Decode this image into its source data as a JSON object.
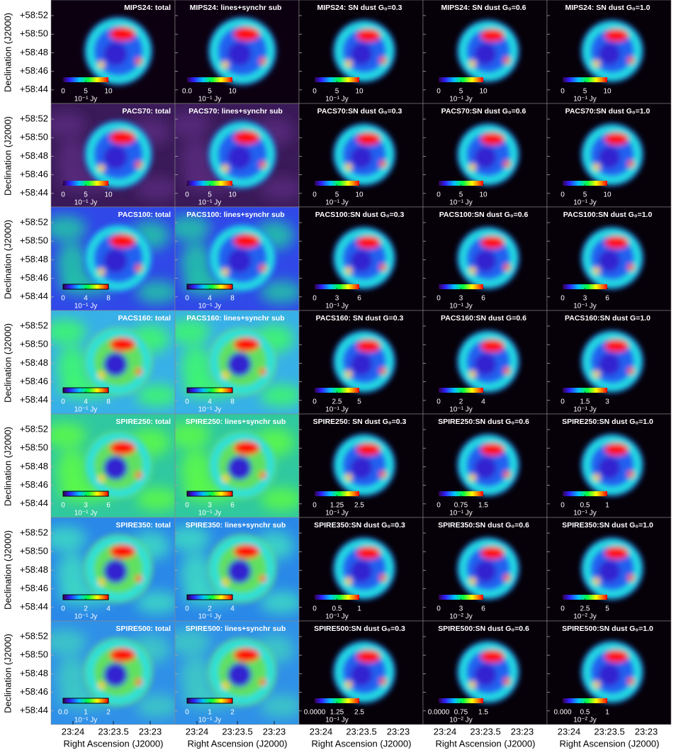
{
  "axes": {
    "y_label": "Declination (J2000)",
    "y_ticks": [
      "+58:52",
      "+58:50",
      "+58:48",
      "+58:46",
      "+58:44"
    ],
    "x_label": "Right Ascension (J2000)",
    "x_ticks": [
      "23:24",
      "23:23.5",
      "23:23"
    ]
  },
  "panels": [
    [
      {
        "title": "MIPS24: total",
        "cbar_ticks": [
          0,
          5,
          10
        ],
        "clim": [
          0,
          10
        ],
        "unit": "10⁻¹ Jy"
      },
      {
        "title": "MIPS24: lines+synchr sub",
        "cbar_ticks": [
          {
            "value": 0,
            "label": "0.0"
          },
          5,
          10
        ],
        "clim": [
          0,
          10
        ],
        "unit": "10⁻¹ Jy"
      },
      {
        "title": "MIPS24: SN dust G₀=0.3",
        "cbar_ticks": [
          0,
          5,
          10
        ],
        "clim": [
          0,
          10
        ],
        "unit": "10⁻¹ Jy"
      },
      {
        "title": "MIPS24: SN dust G₀=0.6",
        "cbar_ticks": [
          0,
          5,
          10
        ],
        "clim": [
          0,
          10
        ],
        "unit": "10⁻¹ Jy"
      },
      {
        "title": "MIPS24: SN dust G₀=1.0",
        "cbar_ticks": [
          0,
          5,
          10
        ],
        "clim": [
          0,
          10
        ],
        "unit": "10⁻¹ Jy"
      }
    ],
    [
      {
        "title": "PACS70: total",
        "cbar_ticks": [
          0,
          5,
          10
        ],
        "clim": [
          0,
          10
        ],
        "unit": "10⁻¹ Jy"
      },
      {
        "title": "PACS70: lines+synchr sub",
        "cbar_ticks": [
          0,
          5,
          10
        ],
        "clim": [
          0,
          10
        ],
        "unit": "10⁻¹ Jy"
      },
      {
        "title": "PACS70:SN dust G₀=0.3",
        "cbar_ticks": [
          0,
          5,
          10
        ],
        "clim": [
          0,
          10
        ],
        "unit": "10⁻¹ Jy"
      },
      {
        "title": "PACS70:SN dust G₀=0.6",
        "cbar_ticks": [
          0,
          5,
          10
        ],
        "clim": [
          0,
          10
        ],
        "unit": "10⁻¹ Jy"
      },
      {
        "title": "PACS70:SN dust G₀=1.0",
        "cbar_ticks": [
          0,
          5,
          10
        ],
        "clim": [
          0,
          10
        ],
        "unit": "10⁻¹ Jy"
      }
    ],
    [
      {
        "title": "PACS100: total",
        "cbar_ticks": [
          0,
          4,
          8
        ],
        "clim": [
          0,
          8
        ],
        "unit": "10⁻¹ Jy"
      },
      {
        "title": "PACS100: lines+synchr sub",
        "cbar_ticks": [
          0,
          4,
          8
        ],
        "clim": [
          0,
          8
        ],
        "unit": "10⁻¹ Jy"
      },
      {
        "title": "PACS100:SN dust G₀=0.3",
        "cbar_ticks": [
          0,
          3,
          6
        ],
        "clim": [
          0,
          6
        ],
        "unit": "10⁻¹ Jy"
      },
      {
        "title": "PACS100:SN dust G₀=0.6",
        "cbar_ticks": [
          0,
          3,
          6
        ],
        "clim": [
          0,
          6
        ],
        "unit": "10⁻¹ Jy"
      },
      {
        "title": "PACS100:SN dust G₀=1.0",
        "cbar_ticks": [
          0,
          3,
          6
        ],
        "clim": [
          0,
          6
        ],
        "unit": "10⁻¹ Jy"
      }
    ],
    [
      {
        "title": "PACS160: total",
        "cbar_ticks": [
          0,
          4,
          8
        ],
        "clim": [
          0,
          8
        ],
        "unit": "10⁻¹ Jy"
      },
      {
        "title": "PACS160: lines+synchr sub",
        "cbar_ticks": [
          0,
          4,
          8
        ],
        "clim": [
          0,
          8
        ],
        "unit": "10⁻¹ Jy"
      },
      {
        "title": "PACS160: SN dust G=0.3",
        "cbar_ticks": [
          0,
          2.5,
          5
        ],
        "clim": [
          0,
          5
        ],
        "unit": "10⁻¹ Jy"
      },
      {
        "title": "PACS160:SN dust G=0.6",
        "cbar_ticks": [
          0,
          2,
          4
        ],
        "clim": [
          0,
          4
        ],
        "unit": "10⁻¹ Jy"
      },
      {
        "title": "PACS160:SN dust G=1.0",
        "cbar_ticks": [
          0,
          1.5,
          3
        ],
        "clim": [
          0,
          3
        ],
        "unit": "10⁻¹ Jy"
      }
    ],
    [
      {
        "title": "SPIRE250: total",
        "cbar_ticks": [
          0,
          3,
          6
        ],
        "clim": [
          0,
          6
        ],
        "unit": "10⁻¹ Jy"
      },
      {
        "title": "SPIRE250: lines+synchr sub",
        "cbar_ticks": [
          0,
          3,
          6
        ],
        "clim": [
          0,
          6
        ],
        "unit": "10⁻¹ Jy"
      },
      {
        "title": "SPIRE250: SN dust G₀=0.3",
        "cbar_ticks": [
          0,
          1.25,
          2.5
        ],
        "clim": [
          0,
          2.5
        ],
        "unit": "10⁻¹ Jy"
      },
      {
        "title": "SPIRE250:SN dust G₀=0.6",
        "cbar_ticks": [
          0,
          0.75,
          1.5
        ],
        "clim": [
          0,
          1.5
        ],
        "unit": "10⁻¹ Jy"
      },
      {
        "title": "SPIRE250:SN dust G₀=1.0",
        "cbar_ticks": [
          0,
          0.5,
          1
        ],
        "clim": [
          0,
          1
        ],
        "unit": "10⁻¹ Jy"
      }
    ],
    [
      {
        "title": "SPIRE350: total",
        "cbar_ticks": [
          0,
          2,
          4
        ],
        "clim": [
          0,
          4
        ],
        "unit": "10⁻¹ Jy"
      },
      {
        "title": "SPIRE350: lines+synchr sub",
        "cbar_ticks": [
          0,
          2,
          4
        ],
        "clim": [
          0,
          4
        ],
        "unit": "10⁻¹ Jy"
      },
      {
        "title": "SPIRE350:SN dust G₀=0.3",
        "cbar_ticks": [
          0,
          0.5,
          1
        ],
        "clim": [
          0,
          1
        ],
        "unit": "10⁻¹ Jy"
      },
      {
        "title": "SPIRE350:SN dust G₀=0.6",
        "cbar_ticks": [
          0,
          3,
          6
        ],
        "clim": [
          0,
          6
        ],
        "unit": "10⁻² Jy"
      },
      {
        "title": "SPIRE350:SN dust G₀=1.0",
        "cbar_ticks": [
          0,
          2.5,
          5
        ],
        "clim": [
          0,
          5
        ],
        "unit": "10⁻² Jy"
      }
    ],
    [
      {
        "title": "SPIRE500: total",
        "cbar_ticks": [
          {
            "value": 0,
            "label": "0.0"
          },
          1,
          2
        ],
        "clim": [
          0,
          2
        ],
        "unit": "10⁻¹ Jy"
      },
      {
        "title": "SPIRE500: lines+synchr sub",
        "cbar_ticks": [
          0,
          1,
          2
        ],
        "clim": [
          0,
          2
        ],
        "unit": "10⁻¹ Jy"
      },
      {
        "title": "SPIRE500:SN dust G₀=0.3",
        "cbar_ticks": [
          {
            "value": 0,
            "label": "0.0000"
          },
          1.25,
          2.5
        ],
        "clim": [
          0,
          2.5
        ],
        "unit": "10⁻¹ Jy"
      },
      {
        "title": "SPIRE500:SN dust G₀=0.6",
        "cbar_ticks": [
          {
            "value": 0,
            "label": "0.0000"
          },
          0.75,
          1.5
        ],
        "clim": [
          0,
          1.5
        ],
        "unit": "10⁻² Jy"
      },
      {
        "title": "SPIRE500:SN dust G₀=1.0",
        "cbar_ticks": [
          {
            "value": 0,
            "label": "0.000"
          },
          0.5,
          1
        ],
        "clim": [
          0,
          1
        ],
        "unit": "10⁻² Jy"
      }
    ]
  ]
}
